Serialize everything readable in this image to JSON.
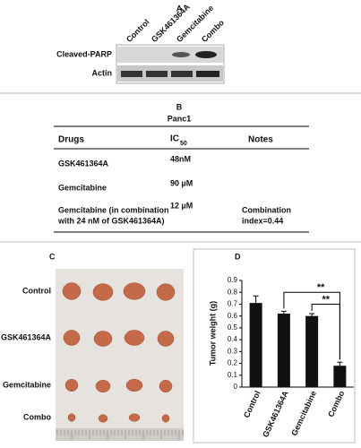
{
  "panel_a": {
    "label": "A",
    "lanes": [
      "Control",
      "GSK461364A",
      "Gemcitabine",
      "Combo"
    ],
    "rows": [
      "Cleaved-PARP",
      "Actin"
    ]
  },
  "panel_b": {
    "label": "B",
    "title": "Panc1",
    "headers": {
      "drugs": "Drugs",
      "ic": "IC",
      "ic_sub": "50",
      "notes": "Notes"
    },
    "rows": [
      {
        "drug": [
          "GSK461364A"
        ],
        "ic50": "48nM"
      },
      {
        "drug": [
          "Gemcitabine"
        ],
        "ic50": "90 µM"
      },
      {
        "drug": [
          "Gemcitabine (in combination",
          "with 24 nM of GSK461364A)"
        ],
        "ic50": "12 µM",
        "notes": [
          "Combination",
          "index=0.44"
        ]
      }
    ]
  },
  "panel_c": {
    "label": "C",
    "rows": [
      "Control",
      "GSK461364A",
      "Gemcitabine",
      "Combo"
    ]
  },
  "chart_data": {
    "type": "bar",
    "label": "D",
    "y_label": "Tumor weight (g)",
    "categories": [
      "Control",
      "GSK461364A",
      "Gemcitabine",
      "Combo"
    ],
    "values": [
      0.71,
      0.62,
      0.6,
      0.18
    ],
    "errors": [
      0.06,
      0.02,
      0.02,
      0.03
    ],
    "color": "#111111",
    "ylim": [
      0,
      0.9
    ],
    "yticks": [
      0,
      0.1,
      0.2,
      0.3,
      0.4,
      0.5,
      0.6,
      0.7,
      0.8,
      0.9
    ],
    "annotations": [
      "**",
      "**"
    ]
  }
}
